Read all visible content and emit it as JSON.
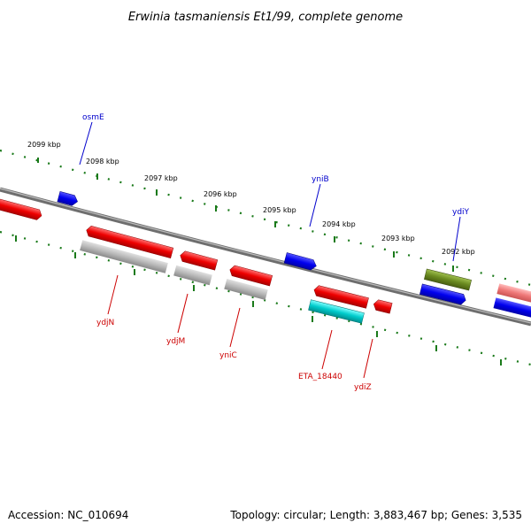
{
  "title": "Erwinia tasmaniensis Et1/99, complete genome",
  "footer": {
    "accession": "Accession: NC_010694",
    "topology": "Topology: circular; Length: 3,883,467 bp; Genes: 3,535"
  },
  "colors": {
    "backbone": "#7a7a7a",
    "tick": "#1a7a1a",
    "label_blue": "#0000cc",
    "label_red": "#cc0000"
  },
  "ticks": [
    {
      "label": "2099 kbp"
    },
    {
      "label": "2098 kbp"
    },
    {
      "label": "2097 kbp"
    },
    {
      "label": "2096 kbp"
    },
    {
      "label": "2095 kbp"
    },
    {
      "label": "2094 kbp"
    },
    {
      "label": "2093 kbp"
    },
    {
      "label": "2092 kbp"
    }
  ],
  "gene_labels_top": [
    {
      "name": "osmE"
    },
    {
      "name": "yniB"
    },
    {
      "name": "ydiY"
    }
  ],
  "gene_labels_bottom": [
    {
      "name": "ydjN"
    },
    {
      "name": "ydjM"
    },
    {
      "name": "yniC"
    },
    {
      "name": "ETA_18440"
    },
    {
      "name": "ydiZ"
    }
  ]
}
